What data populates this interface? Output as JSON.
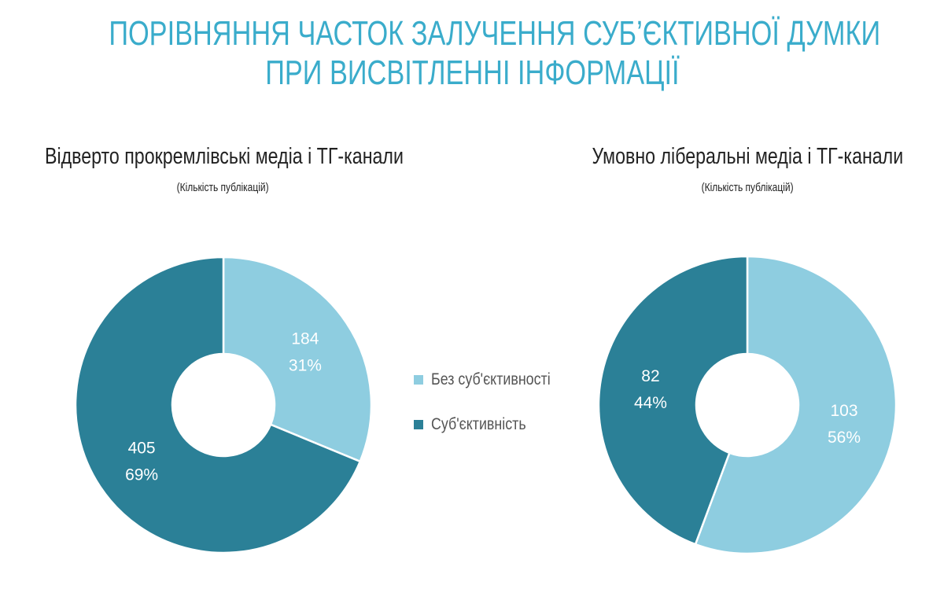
{
  "title_line1": "ПОРІВНЯННЯ ЧАСТОК ЗАЛУЧЕННЯ СУБ’ЄКТИВНОЇ ДУМКИ",
  "title_line2": "ПРИ ВИСВІТЛЕННІ ІНФОРМАЦІЇ",
  "colors": {
    "title": "#3aaccb",
    "no_subjectivity": "#8ecde0",
    "subjectivity": "#2b8097"
  },
  "legend": [
    {
      "label": "Без суб'єктивності",
      "color": "#8ecde0"
    },
    {
      "label": "Суб'єктивність",
      "color": "#2b8097"
    }
  ],
  "chart_data": [
    {
      "type": "pie",
      "donut": true,
      "title": "Відверто прокремлівські медіа і ТГ-канали",
      "subtitle": "(Кількість публікацій)",
      "categories": [
        "Без суб'єктивності",
        "Суб'єктивність"
      ],
      "values": [
        184,
        405
      ],
      "percent_labels": [
        "31%",
        "69%"
      ],
      "value_labels": [
        "184",
        "405"
      ]
    },
    {
      "type": "pie",
      "donut": true,
      "title": "Умовно ліберальні медіа і ТГ-канали",
      "subtitle": "(Кількість публікацій)",
      "categories": [
        "Без суб'єктивності",
        "Суб'єктивність"
      ],
      "values": [
        103,
        82
      ],
      "percent_labels": [
        "56%",
        "44%"
      ],
      "value_labels": [
        "103",
        "82"
      ]
    }
  ]
}
